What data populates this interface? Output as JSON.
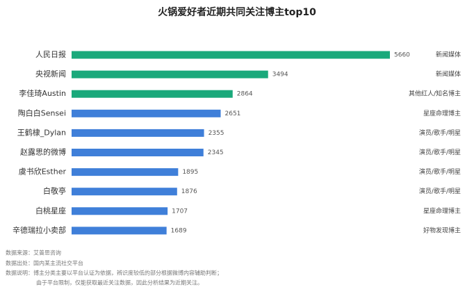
{
  "chart_data": {
    "type": "bar",
    "orientation": "horizontal",
    "title": "火锅爱好者近期共同关注博主top10",
    "categories": [
      "人民日报",
      "央视新闻",
      "李佳琦Austin",
      "陶白白Sensei",
      "王鹤棣_Dylan",
      "赵露思的微博",
      "虞书欣Esther",
      "白敬亭",
      "白桃星座",
      "辛德瑞拉小卖部"
    ],
    "values": [
      5660,
      3494,
      2864,
      2651,
      2355,
      2345,
      1895,
      1876,
      1707,
      1689
    ],
    "colors": [
      "#1aa97b",
      "#1aa97b",
      "#1aa97b",
      "#3f7fd9",
      "#3f7fd9",
      "#3f7fd9",
      "#3f7fd9",
      "#3f7fd9",
      "#3f7fd9",
      "#3f7fd9"
    ],
    "tags": [
      "新闻媒体",
      "新闻媒体",
      "其他红人/知名博主",
      "星座命理博主",
      "演员/歌手/明星",
      "演员/歌手/明星",
      "演员/歌手/明星",
      "演员/歌手/明星",
      "星座命理博主",
      "好物发现博主"
    ],
    "notes": [
      "数据来源：艾普思咨询",
      "数据出处：国内某主流社交平台",
      "数据说明：博主分类主要以平台认证为依据，辨识度较低的部分根据微博内容辅助判断；",
      "由于平台限制，仅能获取最近关注数据，因此分析结果为近期关注。"
    ]
  }
}
